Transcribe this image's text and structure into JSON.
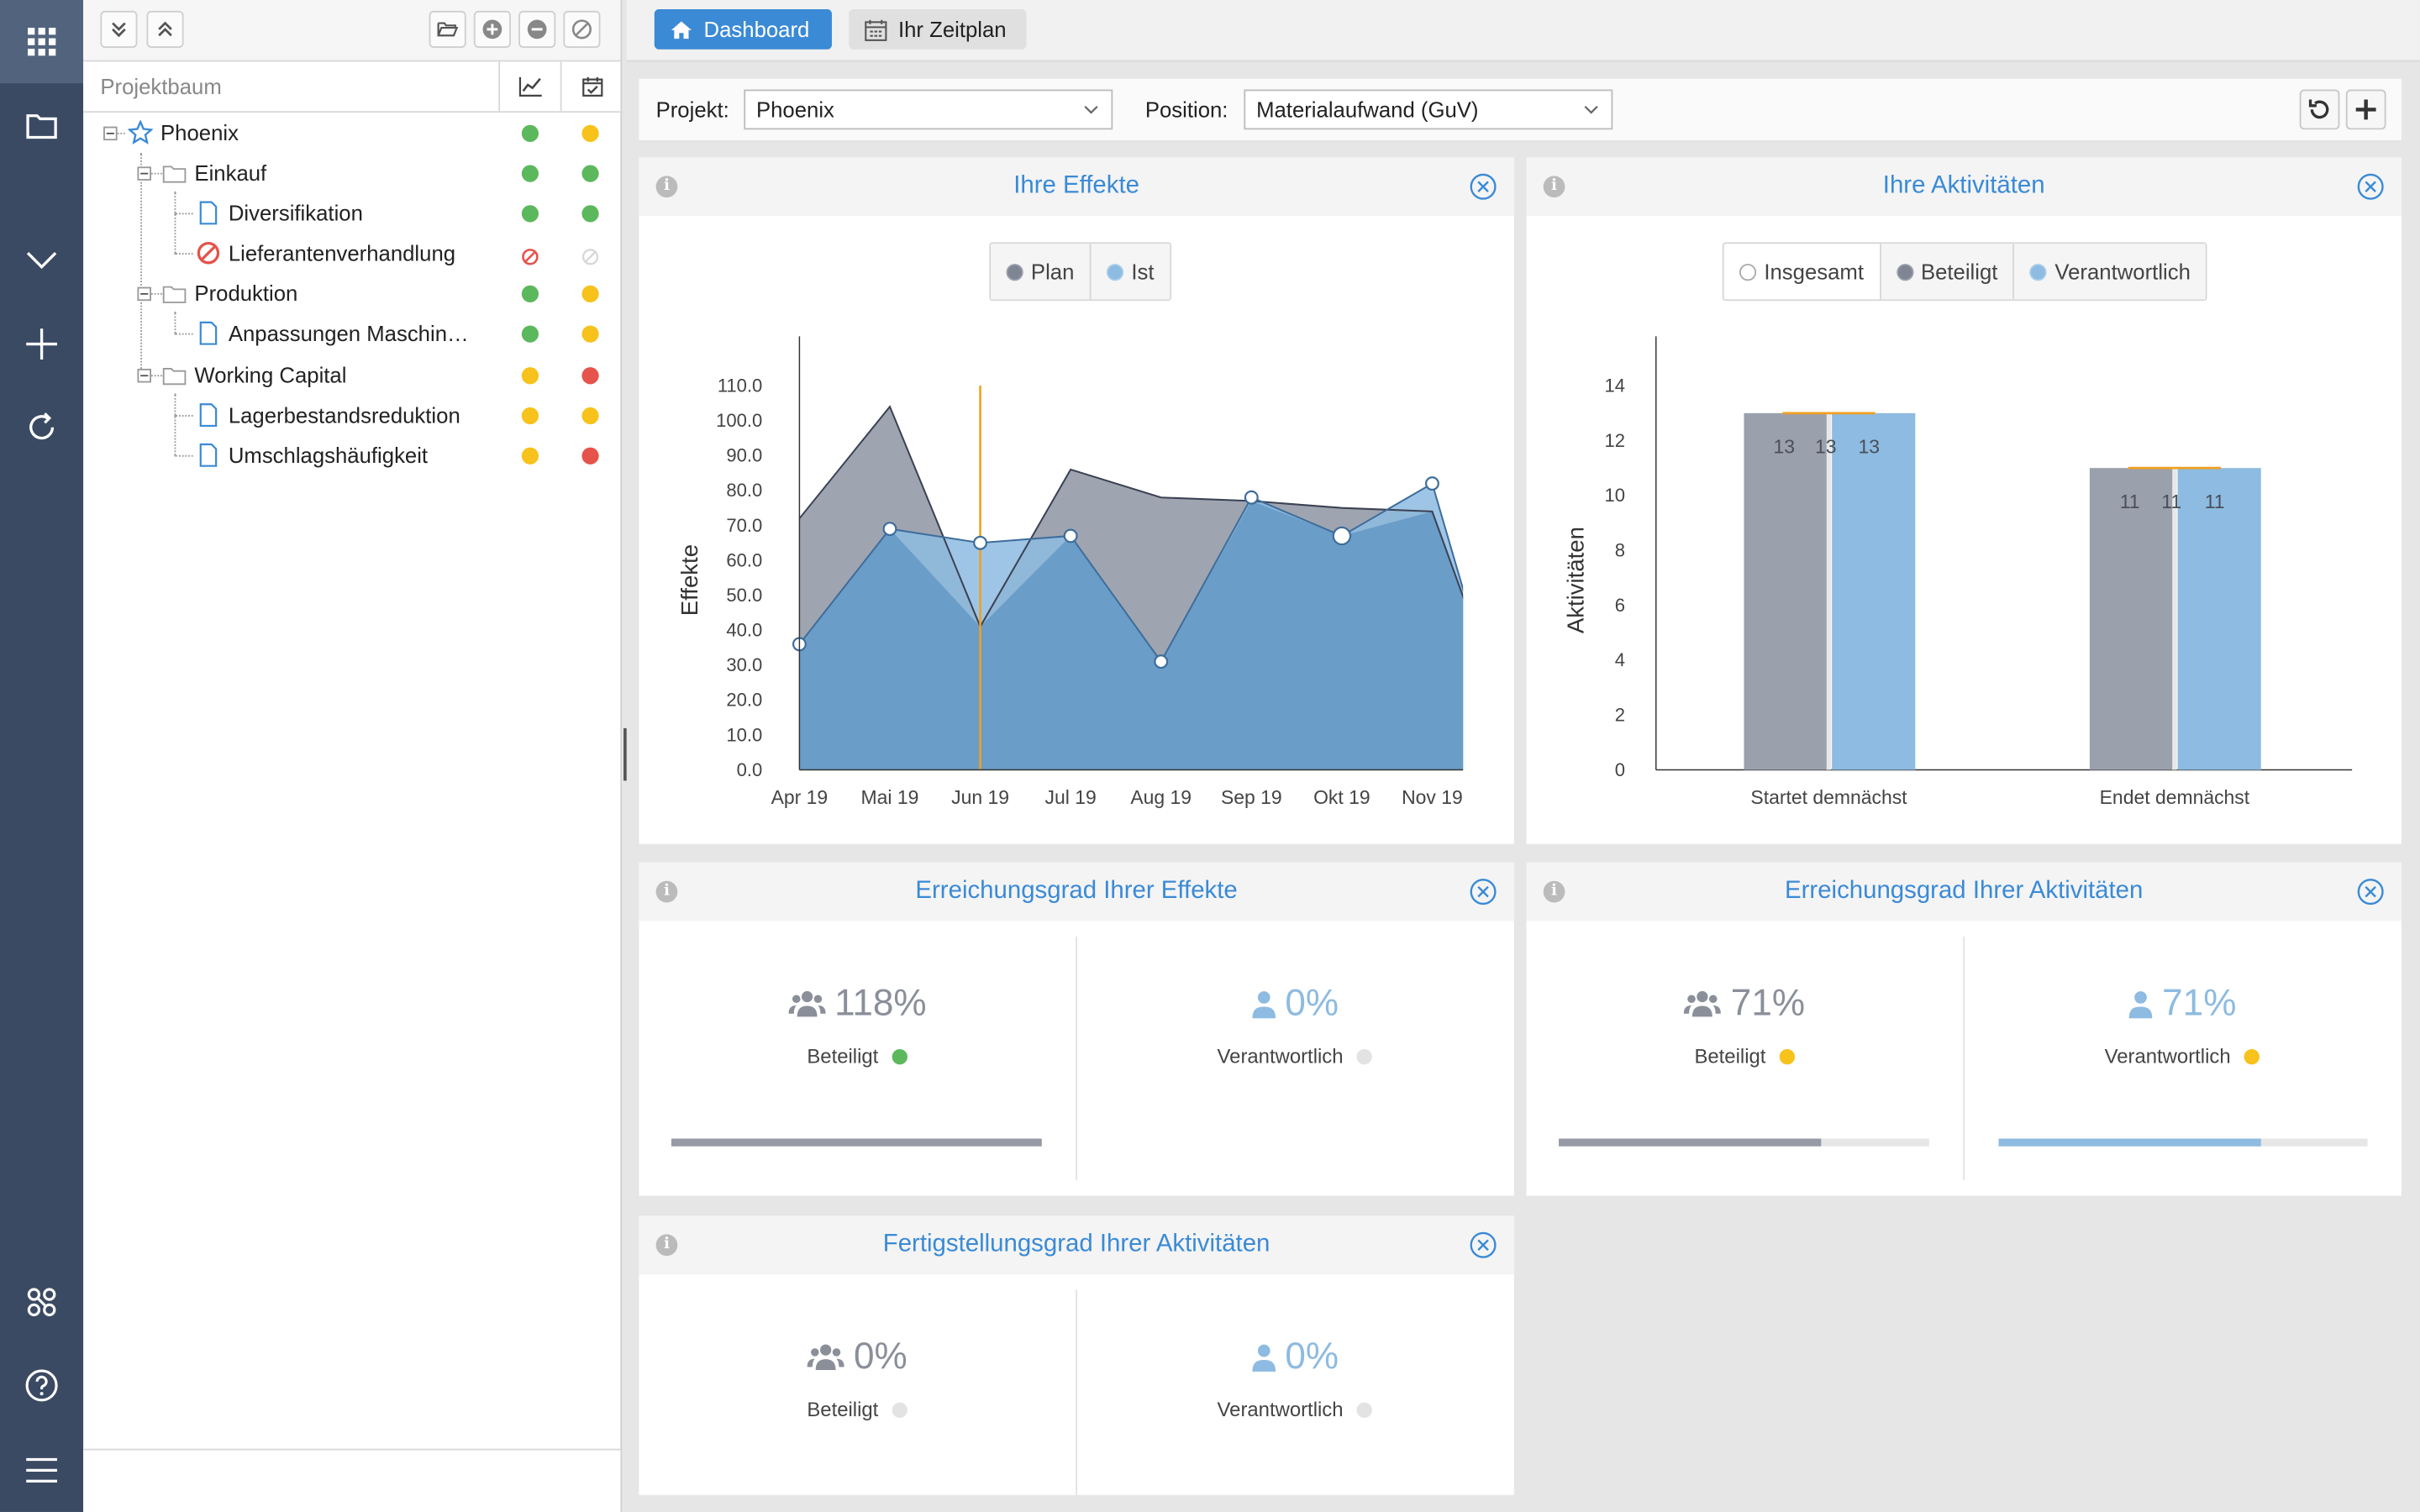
{
  "colors": {
    "accent": "#3a8ad6",
    "rail": "#3b4a63",
    "green": "#5cb85c",
    "yellow": "#f7c21b",
    "red": "#e5534b",
    "grey_dot": "#dddddd",
    "plan": "#9aa0ac",
    "ist": "#8dbbe1",
    "overlap": "#6a9dc8"
  },
  "rail": {
    "icons": [
      "apps-grid-icon",
      "folder-icon",
      "chevron-down-icon",
      "plus-icon",
      "refresh-icon",
      "molecule-icon",
      "help-icon",
      "menu-icon"
    ]
  },
  "tree": {
    "header_label": "Projektbaum",
    "nodes": [
      {
        "label": "Phoenix",
        "status1": "green",
        "status2": "yellow"
      },
      {
        "label": "Einkauf",
        "status1": "green",
        "status2": "green"
      },
      {
        "label": "Diversifikation",
        "status1": "green",
        "status2": "green"
      },
      {
        "label": "Lieferantenverhandlung",
        "status1": "blocked",
        "status2": "disabled"
      },
      {
        "label": "Produktion",
        "status1": "green",
        "status2": "yellow"
      },
      {
        "label": "Anpassungen Maschin…",
        "status1": "green",
        "status2": "yellow"
      },
      {
        "label": "Working Capital",
        "status1": "yellow",
        "status2": "red"
      },
      {
        "label": "Lagerbestandsreduktion",
        "status1": "yellow",
        "status2": "yellow"
      },
      {
        "label": "Umschlagshäufigkeit",
        "status1": "yellow",
        "status2": "red"
      }
    ]
  },
  "tabs": {
    "dashboard": "Dashboard",
    "schedule": "Ihr Zeitplan"
  },
  "filters": {
    "project_label": "Projekt:",
    "project_value": "Phoenix",
    "position_label": "Position:",
    "position_value": "Materialaufwand (GuV)"
  },
  "cards": {
    "effekte": {
      "title": "Ihre Effekte",
      "legend": [
        "Plan",
        "Ist"
      ]
    },
    "aktivitaeten": {
      "title": "Ihre Aktivitäten",
      "legend": [
        "Insgesamt",
        "Beteiligt",
        "Verantwortlich"
      ]
    },
    "erreichung_effekte": {
      "title": "Erreichungsgrad Ihrer Effekte",
      "left_value": "118%",
      "left_label": "Beteiligt",
      "left_progress": 1.0,
      "right_value": "0%",
      "right_label": "Verantwortlich",
      "right_progress": 0.0
    },
    "erreichung_aktivitaeten": {
      "title": "Erreichungsgrad Ihrer Aktivitäten",
      "left_value": "71%",
      "left_label": "Beteiligt",
      "left_progress": 0.71,
      "right_value": "71%",
      "right_label": "Verantwortlich",
      "right_progress": 0.71
    },
    "fertigstellung": {
      "title": "Fertigstellungsgrad Ihrer Aktivitäten",
      "left_value": "0%",
      "left_label": "Beteiligt",
      "right_value": "0%",
      "right_label": "Verantwortlich"
    }
  },
  "chart_data": [
    {
      "type": "area",
      "ylabel": "Effekte",
      "xlabel": "",
      "categories": [
        "Apr 19",
        "Mai 19",
        "Jun 19",
        "Jul 19",
        "Aug 19",
        "Sep 19",
        "Okt 19",
        "Nov 19"
      ],
      "yticks": [
        "0.0",
        "10.0",
        "20.0",
        "30.0",
        "40.0",
        "50.0",
        "60.0",
        "70.0",
        "80.0",
        "90.0",
        "100.0",
        "110.0"
      ],
      "ylim": [
        0,
        120
      ],
      "x": [
        0,
        1,
        2,
        3,
        4,
        5,
        6,
        7,
        7.35
      ],
      "series": [
        {
          "name": "Plan",
          "values": [
            72,
            104,
            41,
            86,
            78,
            77,
            75,
            74,
            49
          ]
        },
        {
          "name": "Ist",
          "values": [
            36,
            69,
            65,
            67,
            31,
            78,
            67,
            82,
            51
          ]
        }
      ],
      "today_marker_x": 2.0,
      "legend_position": "top-center",
      "grid": false
    },
    {
      "type": "bar",
      "ylabel": "Aktivitäten",
      "xlabel": "",
      "categories": [
        "Startet demnächst",
        "Endet demnächst"
      ],
      "yticks": [
        "0",
        "2",
        "4",
        "6",
        "8",
        "10",
        "12",
        "14"
      ],
      "ylim": [
        0,
        15
      ],
      "series": [
        {
          "name": "Insgesamt",
          "values": [
            13,
            11
          ]
        },
        {
          "name": "Beteiligt",
          "values": [
            13,
            11
          ]
        },
        {
          "name": "Verantwortlich",
          "values": [
            13,
            11
          ]
        }
      ],
      "data_labels": [
        [
          "13",
          "13",
          "13"
        ],
        [
          "11",
          "11",
          "11"
        ]
      ],
      "legend_position": "top-center",
      "grid": false
    }
  ]
}
